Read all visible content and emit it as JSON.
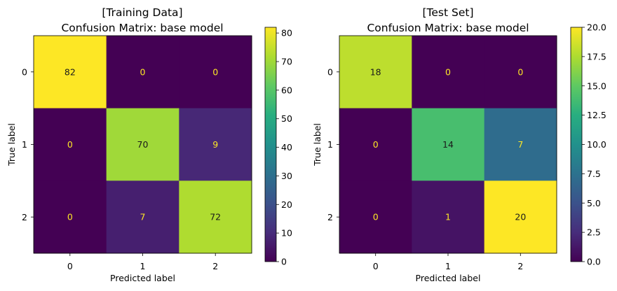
{
  "chart_data": [
    {
      "type": "heatmap",
      "title_line1": "[Training Data]",
      "title_line2": "Confusion Matrix: base model",
      "xlabel": "Predicted label",
      "ylabel": "True label",
      "x_ticks": [
        "0",
        "1",
        "2"
      ],
      "y_ticks": [
        "0",
        "1",
        "2"
      ],
      "matrix": [
        [
          82,
          0,
          0
        ],
        [
          0,
          70,
          9
        ],
        [
          0,
          7,
          72
        ]
      ],
      "colormap": "viridis",
      "colorbar": {
        "min": 0,
        "max": 82,
        "ticks": [
          "0",
          "10",
          "20",
          "30",
          "40",
          "50",
          "60",
          "70",
          "80"
        ]
      }
    },
    {
      "type": "heatmap",
      "title_line1": "[Test Set]",
      "title_line2": "Confusion Matrix: base model",
      "xlabel": "Predicted label",
      "ylabel": "True label",
      "x_ticks": [
        "0",
        "1",
        "2"
      ],
      "y_ticks": [
        "0",
        "1",
        "2"
      ],
      "matrix": [
        [
          18,
          0,
          0
        ],
        [
          0,
          14,
          7
        ],
        [
          0,
          1,
          20
        ]
      ],
      "colormap": "viridis",
      "colorbar": {
        "min": 0,
        "max": 20,
        "ticks": [
          "0.0",
          "2.5",
          "5.0",
          "7.5",
          "10.0",
          "12.5",
          "15.0",
          "17.5",
          "20.0"
        ]
      }
    }
  ]
}
